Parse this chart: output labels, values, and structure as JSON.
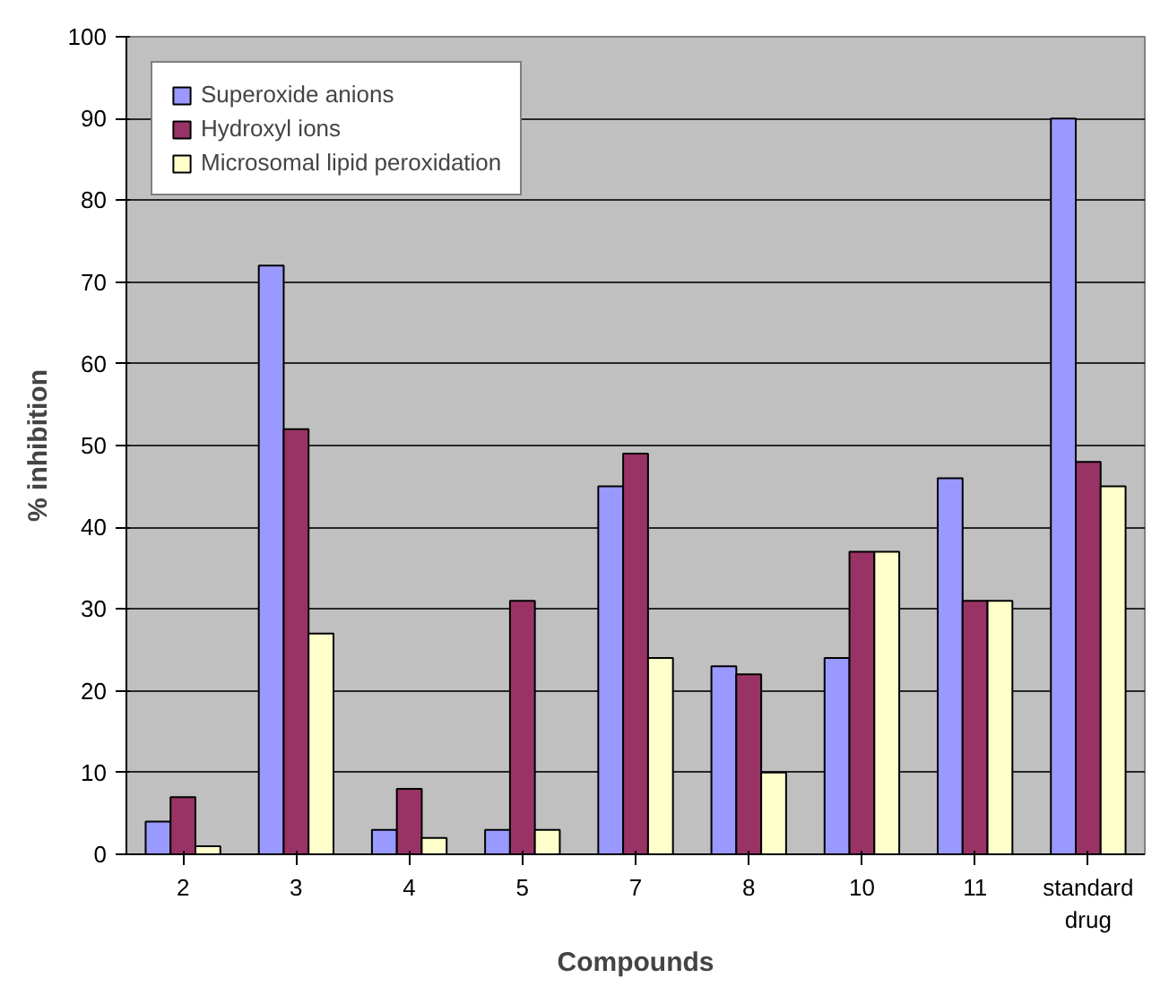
{
  "chart_data": {
    "type": "bar",
    "xlabel": "Compounds",
    "ylabel": "% inhibition",
    "categories": [
      "2",
      "3",
      "4",
      "5",
      "7",
      "8",
      "10",
      "11",
      "standard drug"
    ],
    "series": [
      {
        "name": "Superoxide anions",
        "color": "#9999ff",
        "values": [
          4,
          72,
          3,
          3,
          45,
          23,
          24,
          46,
          90
        ]
      },
      {
        "name": "Hydroxyl ions",
        "color": "#993366",
        "values": [
          7,
          52,
          8,
          31,
          49,
          22,
          37,
          31,
          48
        ]
      },
      {
        "name": "Microsomal lipid peroxidation",
        "color": "#ffffcc",
        "values": [
          1,
          27,
          2,
          3,
          24,
          10,
          37,
          31,
          45
        ]
      }
    ],
    "ylim": [
      0,
      100
    ],
    "yticks": [
      0,
      10,
      20,
      30,
      40,
      50,
      60,
      70,
      80,
      90,
      100
    ],
    "grid": "y",
    "legend": "top left"
  }
}
